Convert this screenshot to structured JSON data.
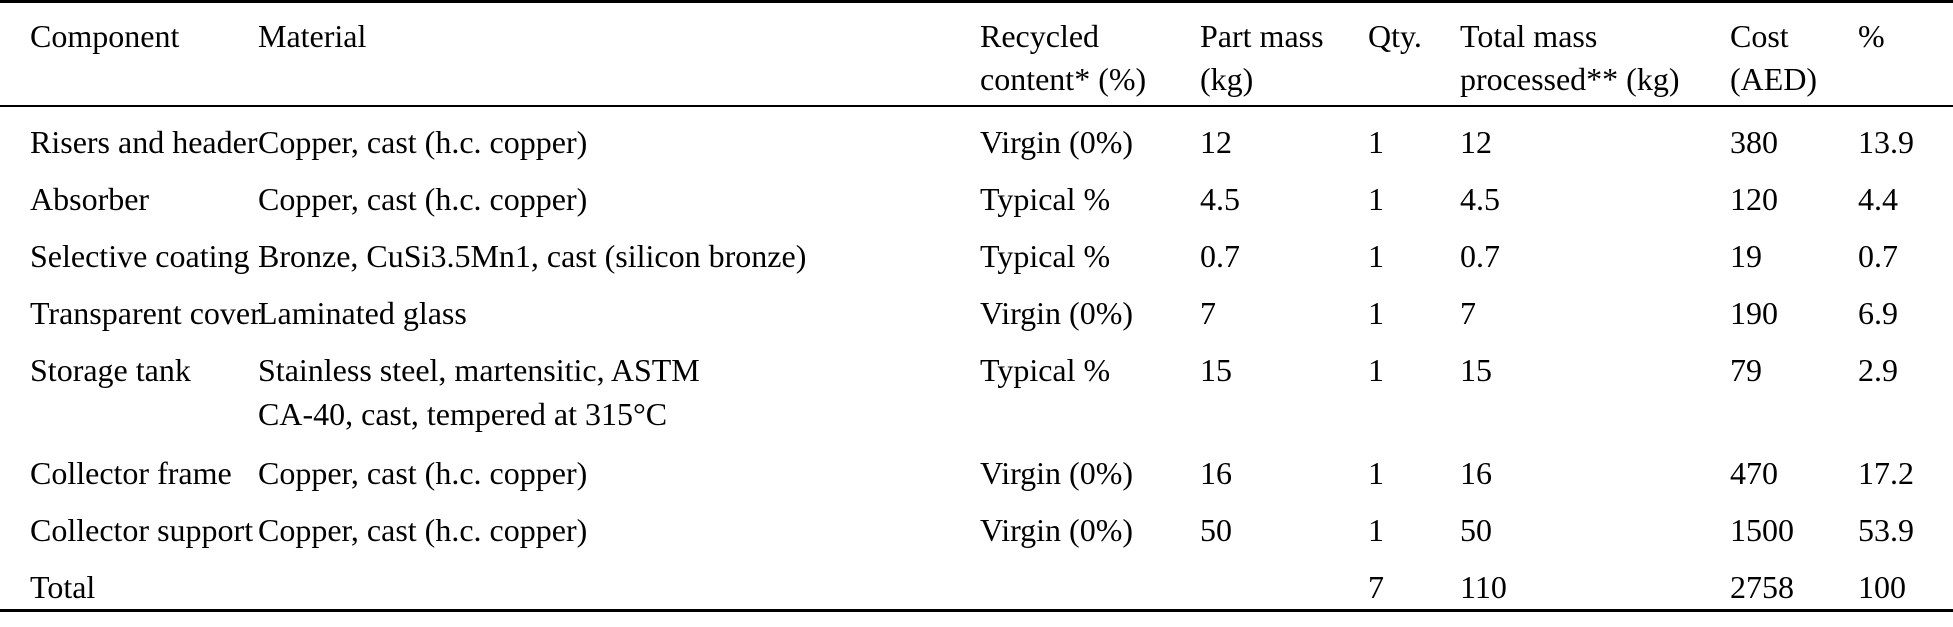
{
  "table": {
    "header": {
      "component": {
        "line1": "Component",
        "line2": ""
      },
      "material": {
        "line1": "Material",
        "line2": ""
      },
      "recycled": {
        "line1": "Recycled",
        "line2": "content* (%)"
      },
      "part_mass": {
        "line1": "Part mass",
        "line2": "(kg)"
      },
      "qty": {
        "line1": "Qty.",
        "line2": ""
      },
      "total_mass": {
        "line1": "Total mass",
        "line2": "processed** (kg)"
      },
      "cost": {
        "line1": "Cost",
        "line2": "(AED)"
      },
      "percent": {
        "line1": "%",
        "line2": ""
      }
    },
    "rows": [
      {
        "component": "Risers and header",
        "material": "Copper, cast (h.c. copper)",
        "material2": "",
        "recycled": "Virgin (0%)",
        "part_mass": "12",
        "qty": "1",
        "total_mass": "12",
        "cost": "380",
        "percent": "13.9"
      },
      {
        "component": "Absorber",
        "material": "Copper, cast (h.c. copper)",
        "material2": "",
        "recycled": "Typical %",
        "part_mass": "4.5",
        "qty": "1",
        "total_mass": "4.5",
        "cost": "120",
        "percent": "4.4"
      },
      {
        "component": "Selective coating",
        "material": "Bronze, CuSi3.5Mn1, cast (silicon bronze)",
        "material2": "",
        "recycled": "Typical %",
        "part_mass": "0.7",
        "qty": "1",
        "total_mass": "0.7",
        "cost": "19",
        "percent": "0.7"
      },
      {
        "component": "Transparent cover",
        "material": "Laminated glass",
        "material2": "",
        "recycled": "Virgin (0%)",
        "part_mass": "7",
        "qty": "1",
        "total_mass": "7",
        "cost": "190",
        "percent": "6.9"
      },
      {
        "component": "Storage tank",
        "material": "Stainless steel, martensitic, ASTM",
        "material2": "CA-40, cast, tempered at 315°C",
        "recycled": "Typical %",
        "part_mass": "15",
        "qty": "1",
        "total_mass": "15",
        "cost": "79",
        "percent": "2.9"
      },
      {
        "component": "Collector frame",
        "material": "Copper, cast (h.c. copper)",
        "material2": "",
        "recycled": "Virgin (0%)",
        "part_mass": "16",
        "qty": "1",
        "total_mass": "16",
        "cost": "470",
        "percent": "17.2"
      },
      {
        "component": "Collector support",
        "material": "Copper, cast (h.c. copper)",
        "material2": "",
        "recycled": "Virgin (0%)",
        "part_mass": "50",
        "qty": "1",
        "total_mass": "50",
        "cost": "1500",
        "percent": "53.9"
      },
      {
        "component": "Total",
        "material": "",
        "material2": "",
        "recycled": "",
        "part_mass": "",
        "qty": "7",
        "total_mass": "110",
        "cost": "2758",
        "percent": "100"
      }
    ],
    "colors": {
      "text": "#000000",
      "background": "#ffffff",
      "rule": "#000000"
    }
  }
}
